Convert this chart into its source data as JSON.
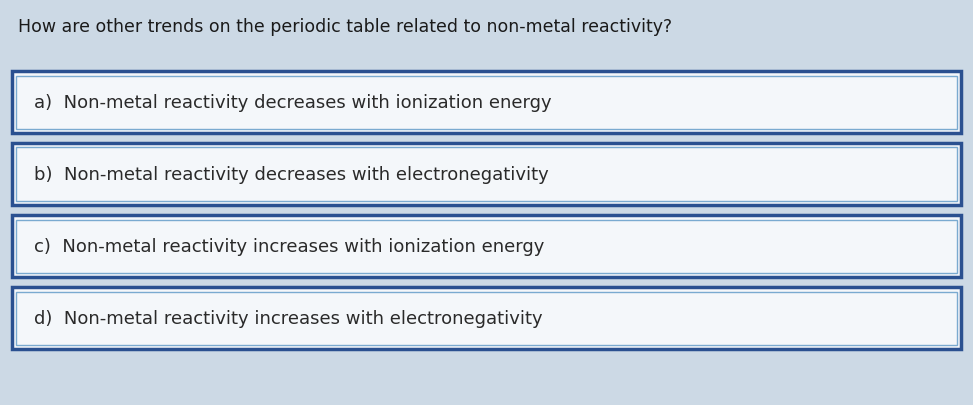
{
  "question": "How are other trends on the periodic table related to non-metal reactivity?",
  "options": [
    "a)  Non-metal reactivity decreases with ionization energy",
    "b)  Non-metal reactivity decreases with electronegativity",
    "c)  Non-metal reactivity increases with ionization energy",
    "d)  Non-metal reactivity increases with electronegativity"
  ],
  "background_color": "#ccd9e5",
  "box_face_color": "#f4f7fa",
  "box_outer_edge_color": "#2a5090",
  "box_inner_edge_color": "#7aaad0",
  "question_fontsize": 12.5,
  "option_fontsize": 13,
  "question_color": "#1a1a1a",
  "option_color": "#2a2a2a",
  "fig_width": 9.73,
  "fig_height": 4.06,
  "dpi": 100
}
